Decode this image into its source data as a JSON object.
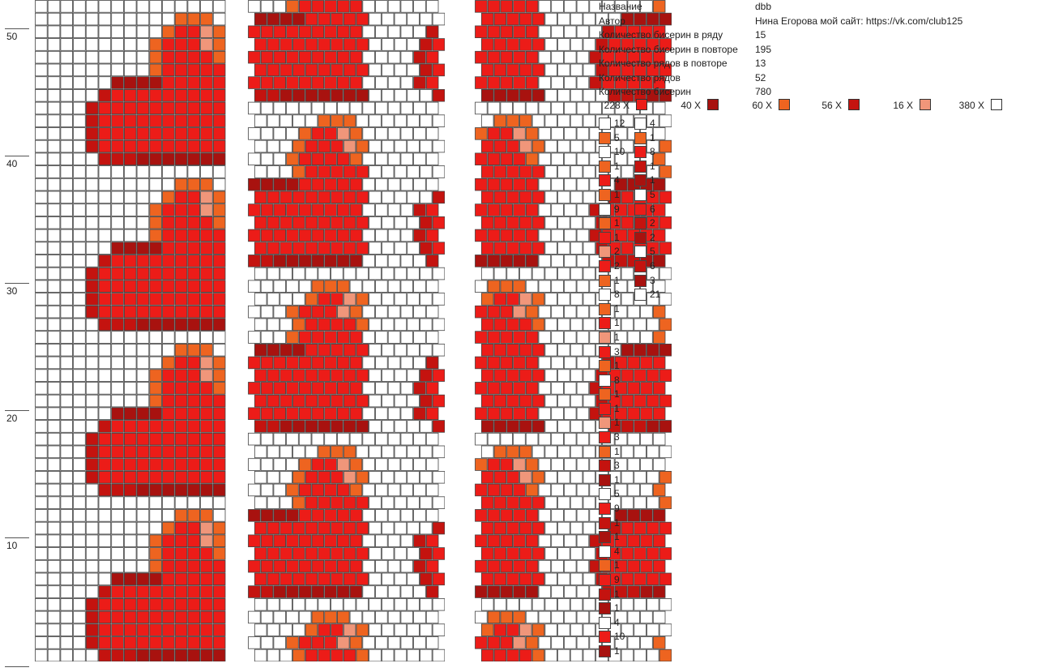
{
  "colors": {
    "white": "#ffffff",
    "red": "#ec1c18",
    "dark_red": "#a8120f",
    "orange": "#ee6420",
    "crimson": "#c4130f",
    "peach": "#f0967a",
    "grid_line": "#444444"
  },
  "info": {
    "name_label": "Название",
    "name_value": "dbb",
    "author_label": "Автор",
    "author_value": "Нина Егорова мой сайт: https://vk.com/club125",
    "row_beads_label": "Количество бисерин в ряду",
    "row_beads_value": "15",
    "repeat_beads_label": "Количество бисерин в повторе",
    "repeat_beads_value": "195",
    "repeat_rows_label": "Количество рядов в повторе",
    "repeat_rows_value": "13",
    "rows_label": "Количество рядов",
    "rows_value": "52",
    "beads_label": "Количество бисерин",
    "beads_value": "780"
  },
  "totals": [
    {
      "label": "228 X",
      "color": "red"
    },
    {
      "label": "40 X",
      "color": "dark_red"
    },
    {
      "label": "60 X",
      "color": "orange"
    },
    {
      "label": "56 X",
      "color": "crimson"
    },
    {
      "label": "16 X",
      "color": "peach"
    },
    {
      "label": "380 X",
      "color": "white"
    }
  ],
  "ruler": [
    "50",
    "40",
    "30",
    "20",
    "10"
  ],
  "sequence_col1": [
    {
      "n": "12",
      "color": "white"
    },
    {
      "n": "5",
      "color": "orange"
    },
    {
      "n": "10",
      "color": "white"
    },
    {
      "n": "1",
      "color": "orange"
    },
    {
      "n": "4",
      "color": "red"
    },
    {
      "n": "1",
      "color": "orange"
    },
    {
      "n": "9",
      "color": "white"
    },
    {
      "n": "1",
      "color": "orange"
    },
    {
      "n": "1",
      "color": "red"
    },
    {
      "n": "2",
      "color": "peach"
    },
    {
      "n": "2",
      "color": "red"
    },
    {
      "n": "1",
      "color": "orange"
    },
    {
      "n": "8",
      "color": "white"
    },
    {
      "n": "1",
      "color": "orange"
    },
    {
      "n": "1",
      "color": "red"
    },
    {
      "n": "1",
      "color": "peach"
    },
    {
      "n": "3",
      "color": "red"
    },
    {
      "n": "1",
      "color": "orange"
    },
    {
      "n": "8",
      "color": "white"
    },
    {
      "n": "1",
      "color": "orange"
    },
    {
      "n": "1",
      "color": "red"
    },
    {
      "n": "1",
      "color": "peach"
    },
    {
      "n": "3",
      "color": "red"
    },
    {
      "n": "1",
      "color": "orange"
    },
    {
      "n": "3",
      "color": "crimson"
    },
    {
      "n": "1",
      "color": "dark_red"
    },
    {
      "n": "5",
      "color": "white"
    },
    {
      "n": "9",
      "color": "red"
    },
    {
      "n": "1",
      "color": "crimson"
    },
    {
      "n": "1",
      "color": "dark_red"
    },
    {
      "n": "4",
      "color": "white"
    },
    {
      "n": "1",
      "color": "orange"
    },
    {
      "n": "9",
      "color": "red"
    },
    {
      "n": "1",
      "color": "crimson"
    },
    {
      "n": "1",
      "color": "dark_red"
    },
    {
      "n": "4",
      "color": "white"
    },
    {
      "n": "10",
      "color": "red"
    },
    {
      "n": "1",
      "color": "dark_red"
    }
  ],
  "sequence_col2": [
    {
      "n": "4",
      "color": "white"
    },
    {
      "n": "1",
      "color": "orange"
    },
    {
      "n": "8",
      "color": "red"
    },
    {
      "n": "1",
      "color": "crimson"
    },
    {
      "n": "1",
      "color": "dark_red"
    },
    {
      "n": "5",
      "color": "white"
    },
    {
      "n": "6",
      "color": "red"
    },
    {
      "n": "2",
      "color": "crimson"
    },
    {
      "n": "2",
      "color": "dark_red"
    },
    {
      "n": "5",
      "color": "white"
    },
    {
      "n": "6",
      "color": "crimson"
    },
    {
      "n": "3",
      "color": "dark_red"
    },
    {
      "n": "21",
      "color": "white"
    }
  ]
}
